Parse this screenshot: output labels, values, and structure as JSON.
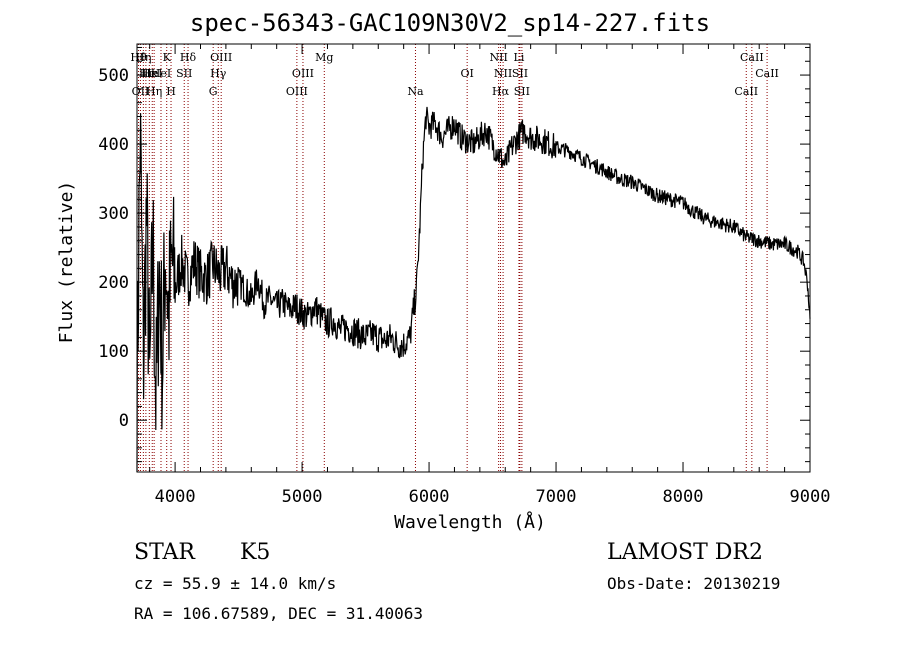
{
  "chart_data": {
    "type": "line",
    "title": "spec-56343-GAC109N30V2_sp14-227.fits",
    "xlabel": "Wavelength (Å)",
    "ylabel": "Flux (relative)",
    "xlim": [
      3700,
      9000
    ],
    "ylim": [
      -75,
      545
    ],
    "x_ticks": [
      4000,
      5000,
      6000,
      7000,
      8000,
      9000
    ],
    "y_ticks": [
      0,
      100,
      200,
      300,
      400,
      500
    ],
    "grid": false,
    "line_color": "#000000",
    "marker_color": "#8b0000",
    "series": [
      {
        "x": [
          3700,
          3725,
          3750,
          3775,
          3800,
          3825,
          3850,
          3875,
          3900,
          3925,
          3950,
          3975,
          4000,
          4050,
          4100,
          4150,
          4200,
          4250,
          4300,
          4350,
          4400,
          4450,
          4500,
          4550,
          4600,
          4650,
          4700,
          4750,
          4800,
          4850,
          4900,
          4950,
          5000,
          5050,
          5100,
          5150,
          5200,
          5250,
          5300,
          5350,
          5400,
          5450,
          5500,
          5550,
          5600,
          5650,
          5700,
          5750,
          5800,
          5850,
          5900,
          5925,
          5950,
          5975,
          6000,
          6050,
          6100,
          6150,
          6200,
          6250,
          6300,
          6350,
          6400,
          6450,
          6500,
          6550,
          6600,
          6650,
          6700,
          6750,
          6800,
          6900,
          7000,
          7100,
          7200,
          7300,
          7400,
          7500,
          7600,
          7700,
          7800,
          7900,
          8000,
          8100,
          8200,
          8300,
          8400,
          8500,
          8600,
          8700,
          8800,
          8900,
          8950,
          8980,
          9000
        ],
        "y": [
          30,
          420,
          80,
          300,
          40,
          260,
          20,
          220,
          80,
          250,
          150,
          230,
          190,
          230,
          200,
          230,
          210,
          205,
          225,
          210,
          220,
          200,
          200,
          190,
          175,
          205,
          170,
          175,
          165,
          170,
          160,
          165,
          155,
          150,
          165,
          150,
          140,
          145,
          130,
          135,
          130,
          125,
          120,
          125,
          120,
          115,
          120,
          110,
          110,
          120,
          190,
          270,
          380,
          440,
          425,
          430,
          410,
          420,
          430,
          410,
          405,
          400,
          410,
          420,
          400,
          385,
          370,
          395,
          410,
          420,
          410,
          405,
          395,
          390,
          380,
          370,
          360,
          350,
          345,
          335,
          325,
          320,
          315,
          300,
          290,
          285,
          280,
          265,
          260,
          255,
          255,
          245,
          230,
          200,
          145
        ]
      }
    ],
    "line_markers": [
      {
        "x": 3712,
        "label": "Hθ",
        "row": 1
      },
      {
        "x": 3727,
        "label": "OII",
        "row": 3
      },
      {
        "x": 3750,
        "label": "Hη",
        "row": 1
      },
      {
        "x": 3770,
        "label": "Hι",
        "row": 2
      },
      {
        "x": 3797,
        "label": "Hκ",
        "row": 2
      },
      {
        "x": 3820,
        "label": "HeI",
        "row": 2
      },
      {
        "x": 3835,
        "label": "Hη",
        "row": 3
      },
      {
        "x": 3889,
        "label": "HeI",
        "row": 2
      },
      {
        "x": 3934,
        "label": "K",
        "row": 1
      },
      {
        "x": 3968,
        "label": "H",
        "row": 3
      },
      {
        "x": 4072,
        "label": "SII",
        "row": 2
      },
      {
        "x": 4102,
        "label": "Hδ",
        "row": 1
      },
      {
        "x": 4300,
        "label": "G",
        "row": 3
      },
      {
        "x": 4340,
        "label": "Hγ",
        "row": 2
      },
      {
        "x": 4363,
        "label": "OIII",
        "row": 1
      },
      {
        "x": 4959,
        "label": "OIII",
        "row": 3
      },
      {
        "x": 5007,
        "label": "OIII",
        "row": 2
      },
      {
        "x": 5175,
        "label": "Mg",
        "row": 1
      },
      {
        "x": 5893,
        "label": "Na",
        "row": 3
      },
      {
        "x": 6300,
        "label": "OI",
        "row": 2
      },
      {
        "x": 6548,
        "label": "NII",
        "row": 1
      },
      {
        "x": 6563,
        "label": "Hα",
        "row": 3
      },
      {
        "x": 6583,
        "label": "NII",
        "row": 2
      },
      {
        "x": 6708,
        "label": "Li",
        "row": 1
      },
      {
        "x": 6716,
        "label": "SII",
        "row": 2
      },
      {
        "x": 6731,
        "label": "SII",
        "row": 3
      },
      {
        "x": 8498,
        "label": "CaII",
        "row": 3
      },
      {
        "x": 8542,
        "label": "CaII",
        "row": 1
      },
      {
        "x": 8662,
        "label": "CaII",
        "row": 2
      }
    ]
  },
  "info": {
    "class_label": "STAR",
    "subclass_label": "K5",
    "survey_label": "LAMOST DR2",
    "cz_text": "cz = 55.9 ± 14.0 km/s",
    "obs_date_text": "Obs-Date: 20130219",
    "coords_text": "RA = 106.67589, DEC =  31.40063"
  }
}
